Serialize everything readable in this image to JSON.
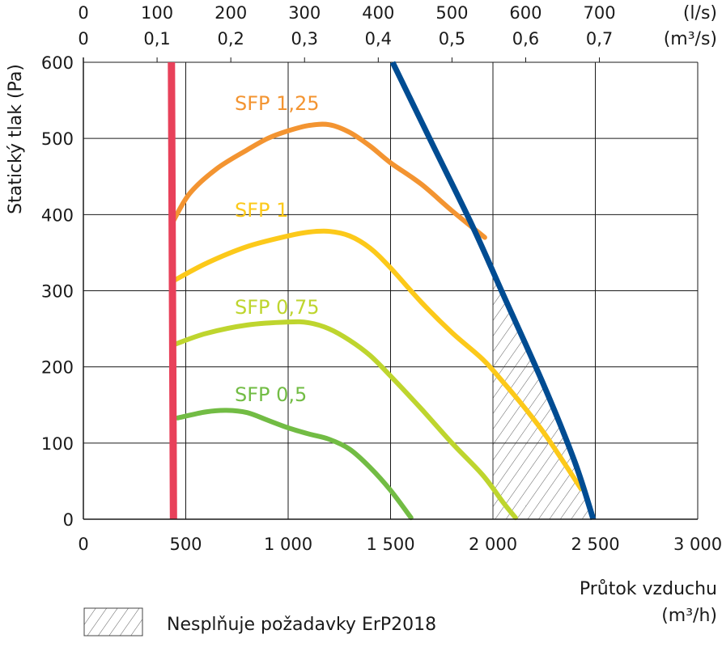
{
  "chart_data": {
    "type": "line",
    "xlabel": "Průtok vzduchu",
    "xunit": "(m³/h)",
    "ylabel": "Statický tlak (Pa)",
    "xlim": [
      0,
      3000
    ],
    "ylim": [
      0,
      600
    ],
    "grid": true,
    "x_ticks": [
      0,
      500,
      1000,
      1500,
      2000,
      2500,
      3000
    ],
    "x_tick_labels": [
      "0",
      "500",
      "1 000",
      "1 500",
      "2 000",
      "2 500",
      "3 000"
    ],
    "y_ticks": [
      0,
      100,
      200,
      300,
      400,
      500,
      600
    ],
    "y_tick_labels": [
      "0",
      "100",
      "200",
      "300",
      "400",
      "500",
      "600"
    ],
    "secondary_axes": [
      {
        "unit": "(l/s)",
        "ticks": [
          0,
          100,
          200,
          300,
          400,
          500,
          600,
          700
        ],
        "labels": [
          "0",
          "100",
          "200",
          "300",
          "400",
          "500",
          "600",
          "700"
        ],
        "factor": 3.6
      },
      {
        "unit": "(m³/s)",
        "ticks": [
          0,
          0.1,
          0.2,
          0.3,
          0.4,
          0.5,
          0.6,
          0.7
        ],
        "labels": [
          "0",
          "0,1",
          "0,2",
          "0,3",
          "0,4",
          "0,5",
          "0,6",
          "0,7"
        ],
        "factor": 3600
      }
    ],
    "series": [
      {
        "name": "SFP 1,25",
        "color": "#f39431",
        "x": [
          440,
          520,
          650,
          800,
          900,
          1000,
          1100,
          1200,
          1300,
          1400,
          1500,
          1650,
          1800,
          1960
        ],
        "y": [
          392,
          428,
          460,
          485,
          500,
          510,
          517,
          518,
          508,
          490,
          468,
          440,
          405,
          370
        ]
      },
      {
        "name": "SFP 1",
        "color": "#fcc91a",
        "x": [
          440,
          600,
          800,
          1000,
          1100,
          1200,
          1300,
          1400,
          1500,
          1650,
          1800,
          1950,
          2050,
          2150,
          2250,
          2350,
          2430
        ],
        "y": [
          313,
          336,
          358,
          372,
          377,
          378,
          372,
          356,
          330,
          285,
          245,
          210,
          180,
          148,
          113,
          73,
          40
        ]
      },
      {
        "name": "SFP 0,75",
        "color": "#bed52e",
        "x": [
          450,
          600,
          800,
          1000,
          1100,
          1200,
          1300,
          1400,
          1500,
          1650,
          1800,
          1950,
          2050,
          2110
        ],
        "y": [
          230,
          244,
          255,
          259,
          258,
          250,
          235,
          215,
          188,
          145,
          100,
          58,
          22,
          2
        ]
      },
      {
        "name": "SFP 0,5",
        "color": "#72bc44",
        "x": [
          460,
          600,
          700,
          800,
          900,
          1000,
          1100,
          1200,
          1300,
          1400,
          1500,
          1600
        ],
        "y": [
          133,
          141,
          143,
          140,
          130,
          120,
          112,
          105,
          92,
          68,
          38,
          2
        ]
      }
    ],
    "boundary_lines": [
      {
        "kind": "min_flow",
        "color": "#e8415a",
        "x": [
          430,
          440
        ],
        "y": [
          600,
          0
        ]
      },
      {
        "kind": "max_flow",
        "color": "#004c92",
        "x": [
          1510,
          1700,
          1900,
          2050,
          2250,
          2400,
          2490
        ],
        "y": [
          600,
          495,
          385,
          295,
          175,
          75,
          0
        ]
      }
    ],
    "hatched_region": {
      "label": "Nesplňuje požadavky ErP2018",
      "x": [
        2000,
        2000,
        2050,
        2250,
        2400,
        2490
      ],
      "y": [
        0,
        320,
        295,
        175,
        75,
        0
      ]
    }
  }
}
